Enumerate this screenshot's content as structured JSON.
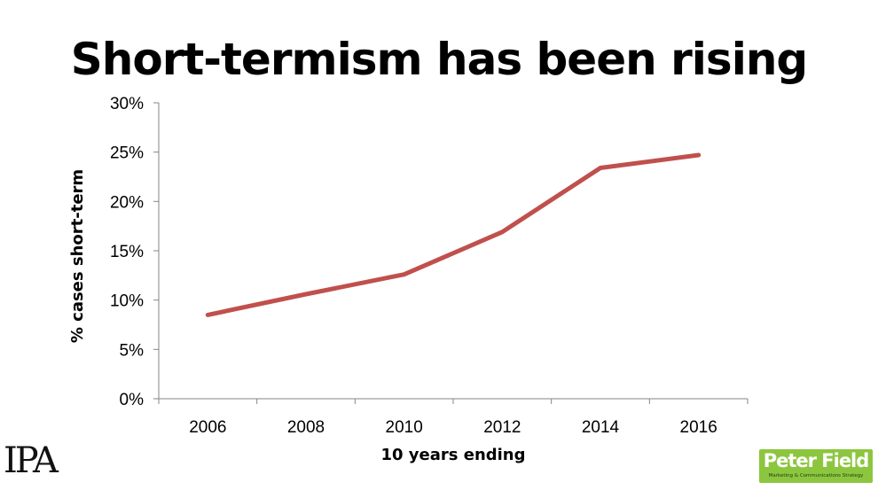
{
  "slide": {
    "title": "Short-termism has been rising"
  },
  "logos": {
    "ipa": "IPA",
    "peter_field_name": "Peter Field",
    "peter_field_tagline": "Marketing & Communications Strategy"
  },
  "colors": {
    "line": "#c0504d",
    "axis": "#868686",
    "logo_green": "#8cc63f"
  },
  "chart_data": {
    "type": "line",
    "title": "",
    "xlabel": "10 years ending",
    "ylabel": "% cases short-term",
    "categories": [
      "2006",
      "2008",
      "2010",
      "2012",
      "2014",
      "2016"
    ],
    "series": [
      {
        "values": [
          8.5,
          10.6,
          12.6,
          16.9,
          23.4,
          24.7
        ]
      }
    ],
    "ylim": [
      0,
      30
    ],
    "yticks": [
      0,
      5,
      10,
      15,
      20,
      25,
      30
    ],
    "ytick_labels": [
      "0%",
      "5%",
      "10%",
      "15%",
      "20%",
      "25%",
      "30%"
    ],
    "grid": false,
    "legend": "none"
  }
}
